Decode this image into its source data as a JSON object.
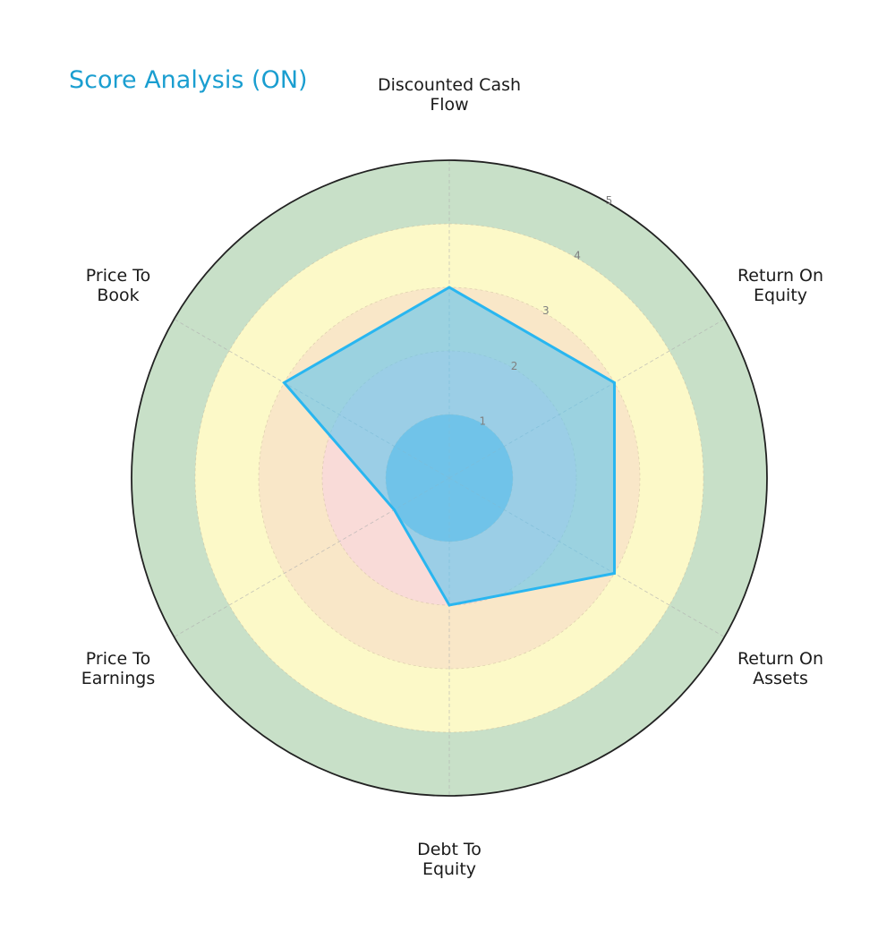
{
  "chart_data": {
    "type": "radar",
    "title": "Score Analysis (ON)",
    "categories": [
      "Discounted Cash Flow",
      "Return On Equity",
      "Return On Assets",
      "Debt To Equity",
      "Price To Earnings",
      "Price To Book"
    ],
    "label_lines": [
      [
        "Discounted Cash",
        "Flow"
      ],
      [
        "Return On",
        "Equity"
      ],
      [
        "Return On",
        "Assets"
      ],
      [
        "Debt To",
        "Equity"
      ],
      [
        "Price To",
        "Earnings"
      ],
      [
        "Price To",
        "Book"
      ]
    ],
    "series": [
      {
        "name": "ON",
        "values": [
          3,
          3,
          3,
          2,
          1,
          3
        ],
        "color": "#29b6f0",
        "fill": "#5bc4f0"
      }
    ],
    "rlim": [
      0,
      5
    ],
    "r_ticks": [
      "1",
      "2",
      "3",
      "4",
      "5"
    ],
    "bands": [
      {
        "from": 0,
        "to": 1,
        "color": "#8fc1df"
      },
      {
        "from": 1,
        "to": 2,
        "color": "#f9dbd8"
      },
      {
        "from": 2,
        "to": 3,
        "color": "#f9e7c8"
      },
      {
        "from": 3,
        "to": 4,
        "color": "#fcf9c8"
      },
      {
        "from": 4,
        "to": 5,
        "color": "#c8e0c8"
      }
    ],
    "grid": true,
    "legend": false
  }
}
